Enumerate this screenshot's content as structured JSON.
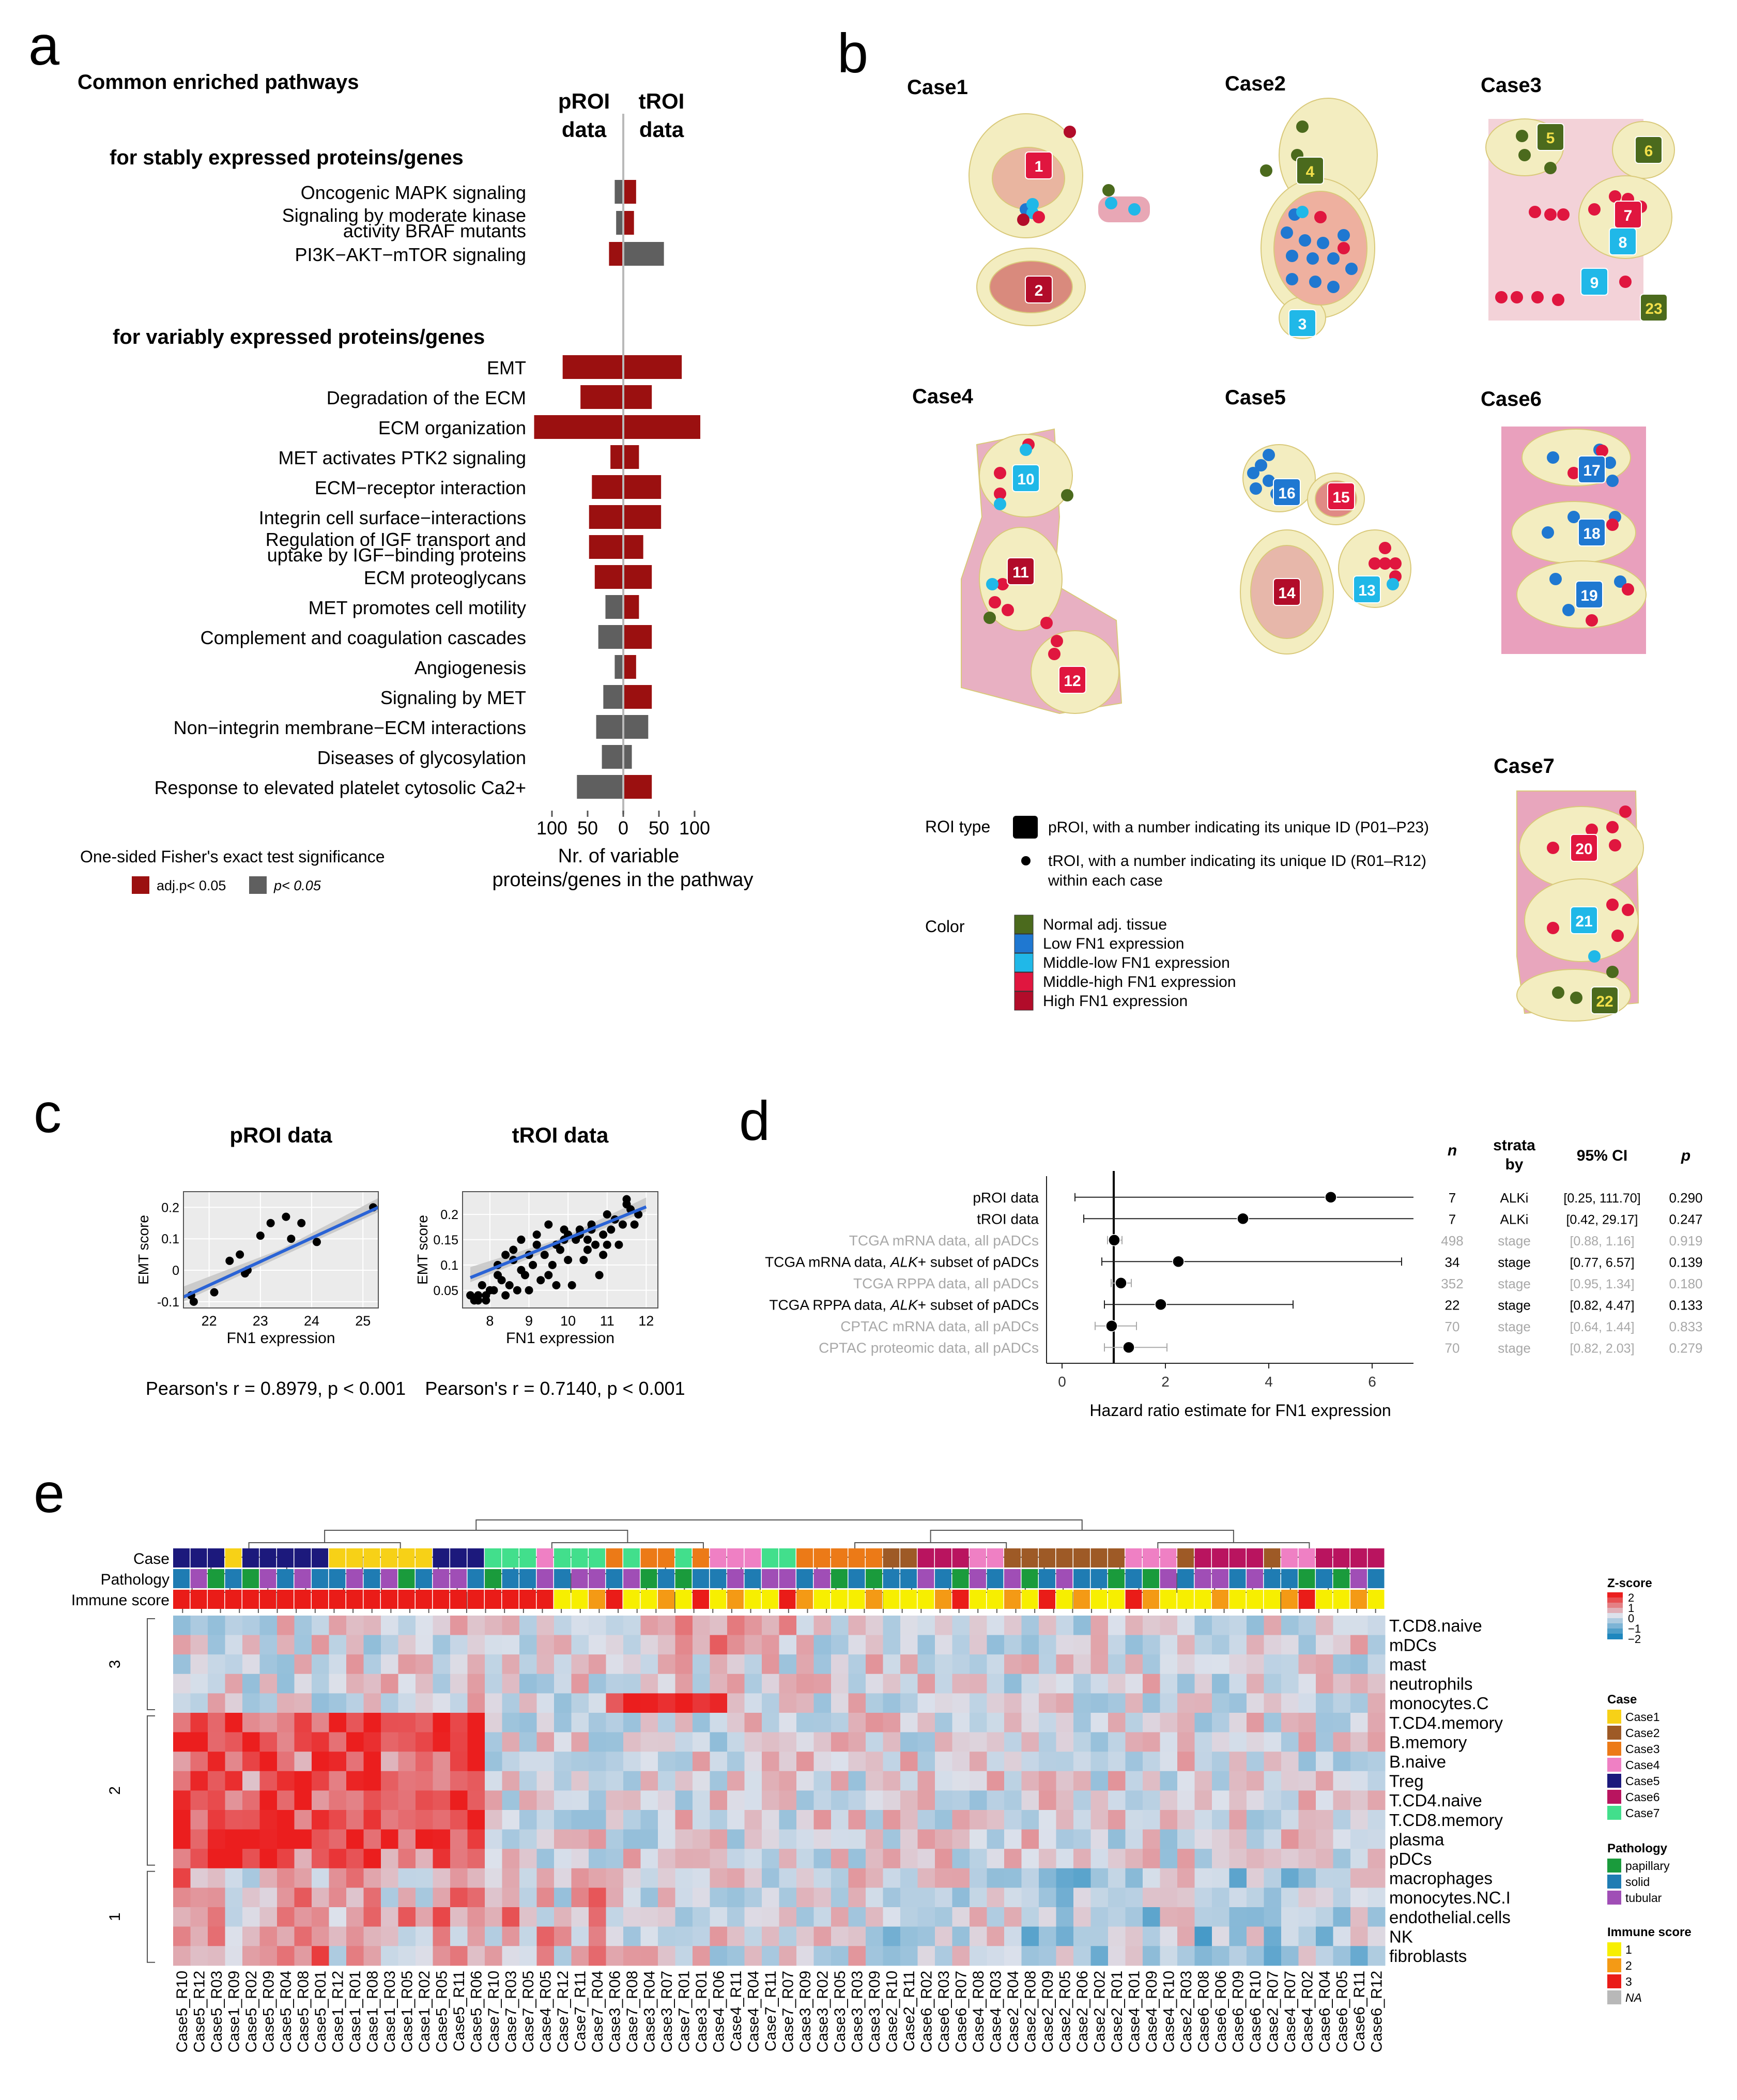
{
  "panel_labels": {
    "a": "a",
    "b": "b",
    "c": "c",
    "d": "d",
    "e": "e"
  },
  "colors": {
    "dark_red": "#9b1010",
    "gray": "#5f5f5f",
    "normal": "#4b6a1d",
    "low": "#1f78d1",
    "midlow": "#20b8e8",
    "midhigh": "#e0163f",
    "high": "#b20c2a",
    "tissue_fill": "#f3edc0",
    "tissue_pink": "#e8a7b5"
  },
  "panel_a": {
    "title": "Common enriched pathways",
    "col_left": [
      "pROI",
      "data"
    ],
    "col_right": [
      "tROI",
      "data"
    ],
    "section_stable": "for stably expressed proteins/genes",
    "section_variable": "for variably expressed proteins/genes",
    "legend_title": "One-sided Fisher's exact test significance",
    "legend_adj": "adj.p< 0.05",
    "legend_p": "p< 0.05",
    "xlabel": [
      "Nr. of variable",
      "proteins/genes in the pathway"
    ],
    "ticks": [
      "100",
      "50",
      "0",
      "50",
      "100"
    ]
  },
  "chart_data": [
    {
      "id": "a",
      "type": "bar",
      "title": "Common enriched pathways",
      "xlabel": "Nr. of variable proteins/genes in the pathway",
      "xlim": [
        -100,
        100
      ],
      "series_names": [
        "pROI data",
        "tROI data"
      ],
      "stable": [
        {
          "label": [
            "Oncogenic MAPK signaling"
          ],
          "pROI": 12,
          "pROI_sig": "p",
          "tROI": 18,
          "tROI_sig": "adj"
        },
        {
          "label": [
            "Signaling by moderate kinase",
            "activity BRAF mutants"
          ],
          "pROI": 10,
          "pROI_sig": "p",
          "tROI": 15,
          "tROI_sig": "adj"
        },
        {
          "label": [
            "PI3K−AKT−mTOR signaling"
          ],
          "pROI": 20,
          "pROI_sig": "adj",
          "tROI": 57,
          "tROI_sig": "p"
        }
      ],
      "variable": [
        {
          "label": [
            "EMT"
          ],
          "pROI": 85,
          "pROI_sig": "adj",
          "tROI": 82,
          "tROI_sig": "adj"
        },
        {
          "label": [
            "Degradation of the ECM"
          ],
          "pROI": 60,
          "pROI_sig": "adj",
          "tROI": 40,
          "tROI_sig": "adj"
        },
        {
          "label": [
            "ECM organization"
          ],
          "pROI": 125,
          "pROI_sig": "adj",
          "tROI": 108,
          "tROI_sig": "adj"
        },
        {
          "label": [
            "MET activates PTK2 signaling"
          ],
          "pROI": 18,
          "pROI_sig": "adj",
          "tROI": 22,
          "tROI_sig": "adj"
        },
        {
          "label": [
            "ECM−receptor interaction"
          ],
          "pROI": 44,
          "pROI_sig": "adj",
          "tROI": 53,
          "tROI_sig": "adj"
        },
        {
          "label": [
            "Integrin cell surface−interactions"
          ],
          "pROI": 48,
          "pROI_sig": "adj",
          "tROI": 53,
          "tROI_sig": "adj"
        },
        {
          "label": [
            "Regulation of IGF transport and",
            "uptake by IGF−binding proteins"
          ],
          "pROI": 48,
          "pROI_sig": "adj",
          "tROI": 28,
          "tROI_sig": "adj"
        },
        {
          "label": [
            "ECM proteoglycans"
          ],
          "pROI": 40,
          "pROI_sig": "adj",
          "tROI": 40,
          "tROI_sig": "adj"
        },
        {
          "label": [
            "MET promotes cell motility"
          ],
          "pROI": 25,
          "pROI_sig": "p",
          "tROI": 22,
          "tROI_sig": "adj"
        },
        {
          "label": [
            "Complement and coagulation cascades"
          ],
          "pROI": 35,
          "pROI_sig": "p",
          "tROI": 40,
          "tROI_sig": "adj"
        },
        {
          "label": [
            "Angiogenesis"
          ],
          "pROI": 12,
          "pROI_sig": "p",
          "tROI": 18,
          "tROI_sig": "adj"
        },
        {
          "label": [
            "Signaling by MET"
          ],
          "pROI": 28,
          "pROI_sig": "p",
          "tROI": 40,
          "tROI_sig": "adj"
        },
        {
          "label": [
            "Non−integrin membrane−ECM interactions"
          ],
          "pROI": 38,
          "pROI_sig": "p",
          "tROI": 35,
          "tROI_sig": "p"
        },
        {
          "label": [
            "Diseases of glycosylation"
          ],
          "pROI": 30,
          "pROI_sig": "p",
          "tROI": 12,
          "tROI_sig": "p"
        },
        {
          "label": [
            "Response to elevated platelet cytosolic Ca2+"
          ],
          "pROI": 65,
          "pROI_sig": "p",
          "tROI": 40,
          "tROI_sig": "adj"
        }
      ]
    },
    {
      "id": "c1",
      "type": "scatter",
      "title": "pROI data",
      "xlabel": "FN1 expression",
      "ylabel": "EMT score",
      "xlim": [
        21.5,
        25.3
      ],
      "ylim": [
        -0.12,
        0.25
      ],
      "xticks": [
        22,
        23,
        24,
        25
      ],
      "yticks": [
        -0.1,
        0.0,
        0.1,
        0.2
      ],
      "fit": {
        "x0": 21.5,
        "y0": -0.085,
        "x1": 25.3,
        "y1": 0.2
      },
      "x": [
        21.65,
        21.7,
        22.1,
        22.4,
        22.6,
        22.7,
        22.75,
        23.0,
        23.2,
        23.5,
        23.6,
        23.8,
        24.1,
        25.2
      ],
      "y": [
        -0.08,
        -0.1,
        -0.07,
        0.03,
        0.05,
        -0.01,
        0.0,
        0.11,
        0.15,
        0.17,
        0.1,
        0.15,
        0.09,
        0.2
      ],
      "annotation": "Pearson's r = 0.8979, p < 0.001"
    },
    {
      "id": "c2",
      "type": "scatter",
      "title": "tROI data",
      "xlabel": "FN1 expression",
      "ylabel": "EMT score",
      "xlim": [
        7.3,
        12.3
      ],
      "ylim": [
        0.015,
        0.245
      ],
      "xticks": [
        8,
        9,
        10,
        11,
        12
      ],
      "yticks": [
        0.05,
        0.1,
        0.15,
        0.2
      ],
      "fit": {
        "x0": 7.5,
        "y0": 0.075,
        "x1": 12.0,
        "y1": 0.215
      },
      "x": [
        7.5,
        7.6,
        7.7,
        7.8,
        7.9,
        8.0,
        8.1,
        8.2,
        8.3,
        8.4,
        8.5,
        8.6,
        8.7,
        8.8,
        8.9,
        9.0,
        9.1,
        9.2,
        9.3,
        9.4,
        9.5,
        9.6,
        9.7,
        9.8,
        9.9,
        10.0,
        10.1,
        10.2,
        10.3,
        10.4,
        10.5,
        10.6,
        10.7,
        10.8,
        10.9,
        11.0,
        11.1,
        11.2,
        11.3,
        11.4,
        11.5,
        11.6,
        11.7,
        11.8,
        8.4,
        9.0,
        9.5,
        10.0,
        10.5,
        7.9,
        8.2,
        8.8,
        9.2,
        9.9,
        10.6,
        11.0,
        11.5,
        8.6,
        9.7,
        10.3,
        10.9,
        7.7
      ],
      "y": [
        0.04,
        0.03,
        0.03,
        0.06,
        0.04,
        0.05,
        0.05,
        0.1,
        0.07,
        0.12,
        0.06,
        0.13,
        0.05,
        0.15,
        0.08,
        0.12,
        0.1,
        0.16,
        0.07,
        0.12,
        0.18,
        0.1,
        0.14,
        0.13,
        0.17,
        0.16,
        0.06,
        0.15,
        0.17,
        0.11,
        0.15,
        0.18,
        0.14,
        0.08,
        0.16,
        0.2,
        0.17,
        0.19,
        0.14,
        0.18,
        0.22,
        0.21,
        0.18,
        0.2,
        0.04,
        0.05,
        0.08,
        0.11,
        0.13,
        0.03,
        0.08,
        0.09,
        0.14,
        0.15,
        0.17,
        0.14,
        0.23,
        0.11,
        0.06,
        0.16,
        0.12,
        0.04
      ],
      "annotation": "Pearson's r = 0.7140, p < 0.001"
    },
    {
      "id": "d",
      "type": "scatter",
      "title": "Hazard ratio estimate for FN1 expression",
      "xlabel": "Hazard ratio estimate for FN1 expression",
      "xlim": [
        -0.3,
        6.8
      ],
      "xticks": [
        0,
        2,
        4,
        6
      ],
      "ref_line": 1,
      "headers": {
        "n": "n",
        "strata": [
          "strata",
          "by"
        ],
        "ci": "95% CI",
        "p": "p"
      },
      "rows": [
        {
          "label": "pROI data",
          "italic": "",
          "suffix": "",
          "hr": 5.2,
          "lo": 0.25,
          "hi": 111.7,
          "n": "7",
          "strata": "ALKi",
          "ci": "[0.25, 111.70]",
          "p": "0.290",
          "faded": false
        },
        {
          "label": "tROI data",
          "italic": "",
          "suffix": "",
          "hr": 3.5,
          "lo": 0.42,
          "hi": 29.17,
          "n": "7",
          "strata": "ALKi",
          "ci": "[0.42, 29.17]",
          "p": "0.247",
          "faded": false
        },
        {
          "label": "TCGA mRNA data, all pADCs",
          "italic": "",
          "suffix": "",
          "hr": 1.01,
          "lo": 0.88,
          "hi": 1.16,
          "n": "498",
          "strata": "stage",
          "ci": "[0.88, 1.16]",
          "p": "0.919",
          "faded": true
        },
        {
          "label": "TCGA mRNA data, ",
          "italic": "ALK",
          "suffix": "+ subset of pADCs",
          "hr": 2.25,
          "lo": 0.77,
          "hi": 6.57,
          "n": "34",
          "strata": "stage",
          "ci": "[0.77, 6.57]",
          "p": "0.139",
          "faded": false
        },
        {
          "label": "TCGA RPPA data, all pADCs",
          "italic": "",
          "suffix": "",
          "hr": 1.14,
          "lo": 0.95,
          "hi": 1.34,
          "n": "352",
          "strata": "stage",
          "ci": "[0.95, 1.34]",
          "p": "0.180",
          "faded": true
        },
        {
          "label": "TCGA RPPA data, ",
          "italic": "ALK",
          "suffix": "+ subset of pADCs",
          "hr": 1.91,
          "lo": 0.82,
          "hi": 4.47,
          "n": "22",
          "strata": "stage",
          "ci": "[0.82, 4.47]",
          "p": "0.133",
          "faded": false
        },
        {
          "label": "CPTAC mRNA data, all pADCs",
          "italic": "",
          "suffix": "",
          "hr": 0.96,
          "lo": 0.64,
          "hi": 1.44,
          "n": "70",
          "strata": "stage",
          "ci": "[0.64, 1.44]",
          "p": "0.833",
          "faded": true
        },
        {
          "label": "CPTAC proteomic data, all pADCs",
          "italic": "",
          "suffix": "",
          "hr": 1.29,
          "lo": 0.82,
          "hi": 2.03,
          "n": "70",
          "strata": "stage",
          "ci": "[0.82, 2.03]",
          "p": "0.279",
          "faded": true
        }
      ]
    },
    {
      "id": "e",
      "type": "heatmap",
      "annotation_labels": [
        "Case",
        "Pathology",
        "Immune score"
      ],
      "cell_types": [
        "T.CD8.naive",
        "mDCs",
        "mast",
        "neutrophils",
        "monocytes.C",
        "T.CD4.memory",
        "B.memory",
        "B.naive",
        "Treg",
        "T.CD4.naive",
        "T.CD8.memory",
        "plasma",
        "pDCs",
        "macrophages",
        "monocytes.NC.I",
        "endothelial.cells",
        "NK",
        "fibroblasts"
      ],
      "row_clusters": [
        {
          "label": "3",
          "rows": 5
        },
        {
          "label": "2",
          "rows": 8
        },
        {
          "label": "1",
          "rows": 5
        }
      ],
      "columns": [
        "Case5_R10",
        "Case5_R12",
        "Case5_R03",
        "Case1_R09",
        "Case5_R02",
        "Case5_R09",
        "Case5_R04",
        "Case5_R08",
        "Case5_R01",
        "Case1_R12",
        "Case1_R01",
        "Case1_R08",
        "Case1_R03",
        "Case1_R05",
        "Case1_R02",
        "Case5_R05",
        "Case5_R11",
        "Case5_R06",
        "Case7_R10",
        "Case7_R03",
        "Case7_R05",
        "Case4_R05",
        "Case7_R12",
        "Case7_R11",
        "Case7_R04",
        "Case3_R06",
        "Case7_R08",
        "Case3_R04",
        "Case3_R07",
        "Case7_R01",
        "Case3_R01",
        "Case4_R06",
        "Case4_R11",
        "Case4_R04",
        "Case7_R11",
        "Case7_R07",
        "Case3_R09",
        "Case3_R02",
        "Case3_R05",
        "Case3_R03",
        "Case3_R09",
        "Case2_R10",
        "Case2_R11",
        "Case6_R02",
        "Case6_R03",
        "Case6_R07",
        "Case4_R08",
        "Case4_R03",
        "Case2_R04",
        "Case2_R08",
        "Case2_R09",
        "Case2_R05",
        "Case2_R06",
        "Case2_R02",
        "Case2_R01",
        "Case4_R01",
        "Case4_R09",
        "Case4_R10",
        "Case2_R03",
        "Case6_R08",
        "Case6_R06",
        "Case6_R09",
        "Case6_R10",
        "Case2_R07",
        "Case4_R07",
        "Case4_R02",
        "Case6_R04",
        "Case6_R05",
        "Case6_R11",
        "Case6_R12"
      ],
      "case_per_column": [
        5,
        5,
        5,
        1,
        5,
        5,
        5,
        5,
        5,
        1,
        1,
        1,
        1,
        1,
        1,
        5,
        5,
        5,
        7,
        7,
        7,
        4,
        7,
        7,
        7,
        3,
        7,
        3,
        3,
        7,
        3,
        4,
        4,
        4,
        7,
        7,
        3,
        3,
        3,
        3,
        3,
        2,
        2,
        6,
        6,
        6,
        4,
        4,
        2,
        2,
        2,
        2,
        2,
        2,
        2,
        4,
        4,
        4,
        2,
        6,
        6,
        6,
        6,
        2,
        4,
        4,
        6,
        6,
        6,
        6
      ],
      "legend": {
        "zscore_title": "Z-score",
        "zscore_ticks": [
          "2",
          "1",
          "0",
          "−1",
          "−2"
        ],
        "case_title": "Case",
        "cases": [
          "Case1",
          "Case2",
          "Case3",
          "Case4",
          "Case5",
          "Case6",
          "Case7"
        ],
        "case_colors": [
          "#f7d117",
          "#9e5a26",
          "#ec7a17",
          "#ef80c4",
          "#1c197c",
          "#b9145f",
          "#42df8c"
        ],
        "path_title": "Pathology",
        "pathologies": [
          "papillary",
          "solid",
          "tubular"
        ],
        "path_colors": [
          "#1a9b3c",
          "#1f7cb3",
          "#a04eb6"
        ],
        "immune_title": "Immune score",
        "immune": [
          "1",
          "2",
          "3",
          "NA"
        ],
        "immune_colors": [
          "#f7ef00",
          "#f49a15",
          "#ea1c18",
          "#b8b8b8"
        ]
      }
    }
  ],
  "panel_b": {
    "cases": [
      "Case1",
      "Case2",
      "Case3",
      "Case4",
      "Case5",
      "Case6",
      "Case7"
    ],
    "legend_roi_title": "ROI type",
    "legend_proi": "pROI, with a number indicating its unique ID (P01–P23)",
    "legend_troi": [
      "tROI, with a number indicating its unique ID (R01–R12)",
      "within each case"
    ],
    "legend_color_title": "Color",
    "legend_colors": [
      "Normal adj. tissue",
      "Low FN1 expression",
      "Middle-low FN1 expression",
      "Middle-high FN1 expression",
      "High FN1 expression"
    ],
    "pROI_ids": [
      {
        "id": "1",
        "cat": "midhigh"
      },
      {
        "id": "2",
        "cat": "high"
      },
      {
        "id": "3",
        "cat": "midlow"
      },
      {
        "id": "4",
        "cat": "normal"
      },
      {
        "id": "5",
        "cat": "normal"
      },
      {
        "id": "6",
        "cat": "normal"
      },
      {
        "id": "7",
        "cat": "midhigh"
      },
      {
        "id": "8",
        "cat": "midlow"
      },
      {
        "id": "9",
        "cat": "midlow"
      },
      {
        "id": "23",
        "cat": "normal"
      },
      {
        "id": "10",
        "cat": "midlow"
      },
      {
        "id": "11",
        "cat": "high"
      },
      {
        "id": "12",
        "cat": "midhigh"
      },
      {
        "id": "16",
        "cat": "low"
      },
      {
        "id": "15",
        "cat": "midhigh"
      },
      {
        "id": "14",
        "cat": "high"
      },
      {
        "id": "13",
        "cat": "midlow"
      },
      {
        "id": "17",
        "cat": "low"
      },
      {
        "id": "18",
        "cat": "low"
      },
      {
        "id": "19",
        "cat": "low"
      },
      {
        "id": "20",
        "cat": "midhigh"
      },
      {
        "id": "21",
        "cat": "midlow"
      },
      {
        "id": "22",
        "cat": "normal"
      }
    ]
  },
  "panel_c": {
    "left_title": "pROI data",
    "right_title": "tROI data"
  }
}
